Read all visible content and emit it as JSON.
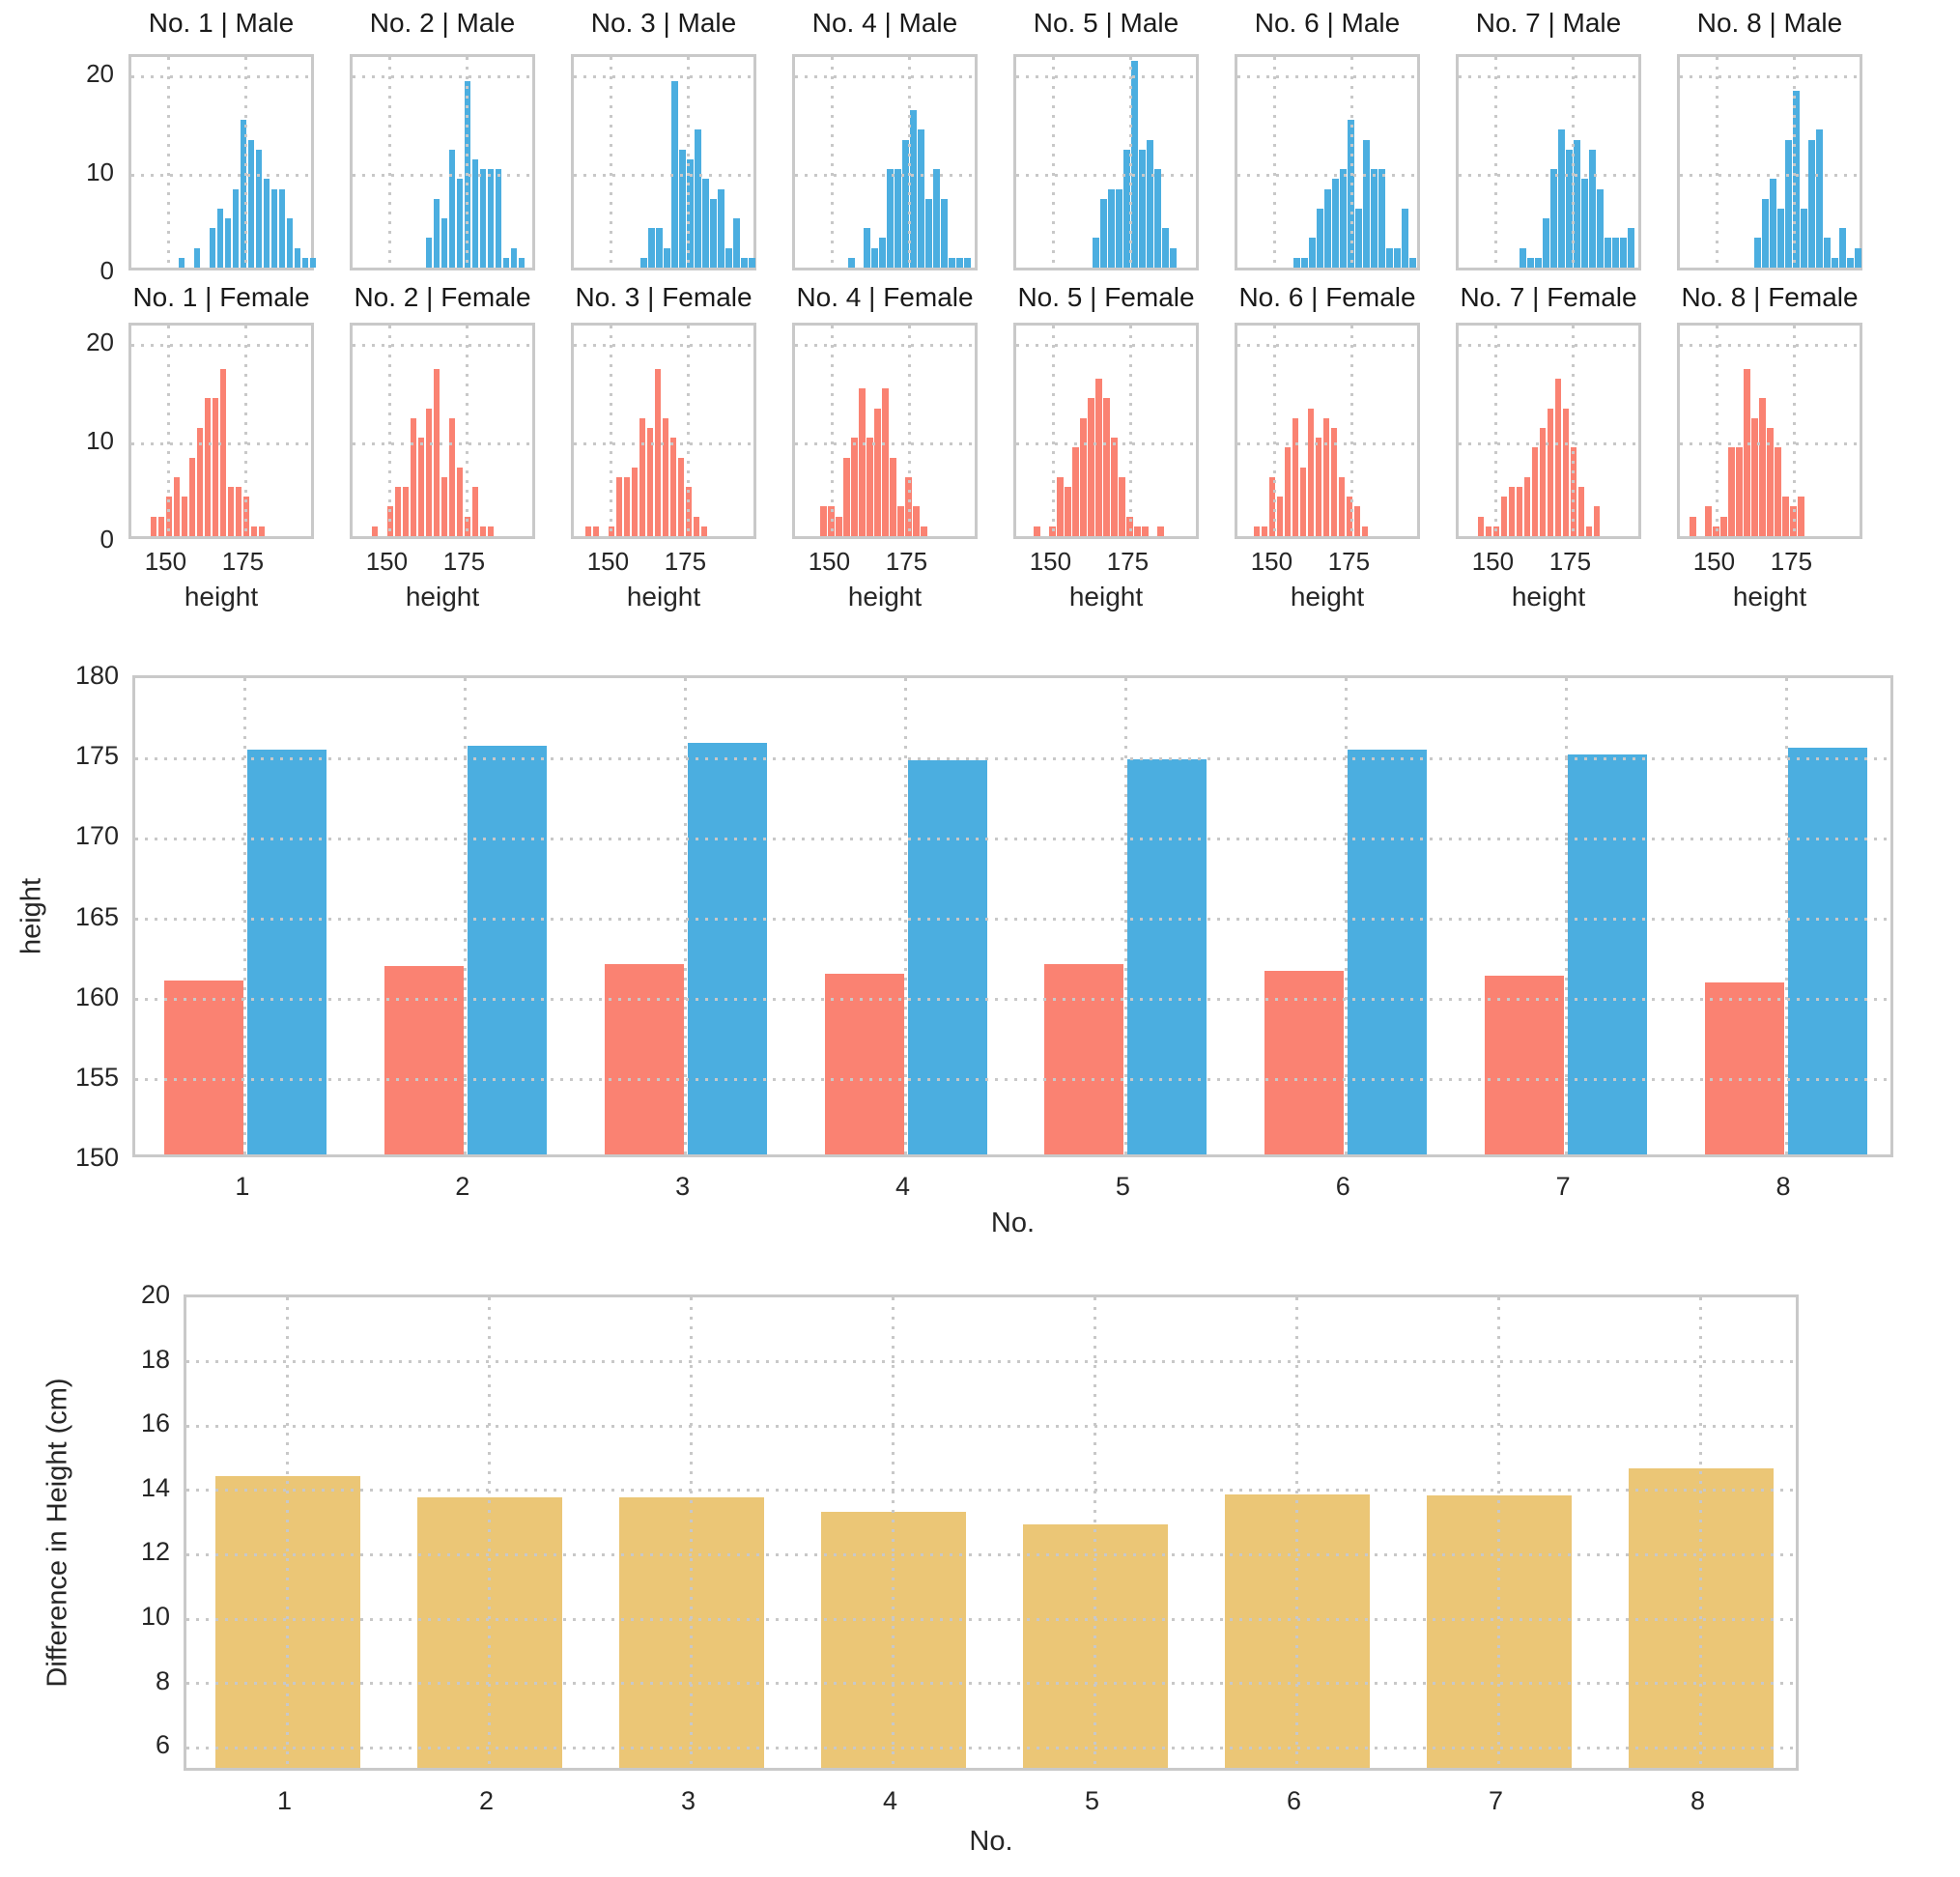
{
  "palette": {
    "male_blue": "#4BAEE0",
    "female_salmon": "#FA8272",
    "diff_gold": "#EBC676",
    "grid_gray": "#C8C8C8",
    "spine_gray": "#C9C9C9",
    "text_dark": "#262626"
  },
  "chart_data": [
    {
      "type": "histogram-grid",
      "xlabel": "height",
      "bin_width": 2.5,
      "xlim": [
        138,
        198
      ],
      "ylim": [
        0,
        22
      ],
      "xticks": [
        "150",
        "175"
      ],
      "yticks": [
        "20",
        "10",
        "0"
      ],
      "rows": [
        {
          "gender": "Male",
          "color": "#4BAEE0",
          "panels": [
            {
              "title": "No. 1 | Male",
              "start": 153.0,
              "counts": [
                1,
                0,
                2,
                0,
                4,
                6,
                5,
                8,
                15,
                13,
                12,
                9,
                8,
                8,
                5,
                2,
                1,
                1
              ]
            },
            {
              "title": "No. 2 | Male",
              "start": 161.5,
              "counts": [
                3,
                7,
                5,
                12,
                9,
                19,
                11,
                10,
                10,
                10,
                1,
                2,
                1
              ]
            },
            {
              "title": "No. 3 | Male",
              "start": 159.5,
              "counts": [
                1,
                4,
                4,
                2,
                19,
                12,
                11,
                14,
                9,
                7,
                8,
                2,
                5,
                1,
                1
              ]
            },
            {
              "title": "No. 4 | Male",
              "start": 155.0,
              "counts": [
                1,
                0,
                4,
                2,
                3,
                10,
                10,
                13,
                16,
                14,
                7,
                10,
                7,
                1,
                1,
                1
              ]
            },
            {
              "title": "No. 5 | Male",
              "start": 162.5,
              "counts": [
                3,
                7,
                8,
                8,
                12,
                21,
                12,
                13,
                10,
                4,
                2
              ]
            },
            {
              "title": "No. 6 | Male",
              "start": 156.0,
              "counts": [
                1,
                1,
                3,
                6,
                8,
                9,
                10,
                15,
                6,
                13,
                10,
                10,
                2,
                2,
                6,
                1
              ]
            },
            {
              "title": "No. 7 | Male",
              "start": 157.5,
              "counts": [
                2,
                1,
                1,
                5,
                10,
                14,
                12,
                13,
                9,
                12,
                8,
                3,
                3,
                3,
                4
              ]
            },
            {
              "title": "No. 8 | Male",
              "start": 162.0,
              "counts": [
                3,
                7,
                9,
                6,
                13,
                18,
                6,
                13,
                14,
                3,
                1,
                4,
                1,
                2
              ]
            }
          ]
        },
        {
          "gender": "Female",
          "color": "#FA8272",
          "panels": [
            {
              "title": "No. 1 | Female",
              "start": 144.0,
              "counts": [
                2,
                2,
                4,
                6,
                4,
                8,
                11,
                14,
                14,
                17,
                5,
                5,
                4,
                1,
                1
              ]
            },
            {
              "title": "No. 2 | Female",
              "start": 144.0,
              "counts": [
                1,
                0,
                3,
                5,
                5,
                12,
                10,
                13,
                17,
                6,
                12,
                7,
                2,
                5,
                1,
                1
              ]
            },
            {
              "title": "No. 3 | Female",
              "start": 141.5,
              "counts": [
                1,
                1,
                0,
                1,
                6,
                6,
                7,
                12,
                11,
                17,
                12,
                10,
                8,
                5,
                2,
                1
              ]
            },
            {
              "title": "No. 4 | Female",
              "start": 146.0,
              "counts": [
                3,
                3,
                2,
                8,
                10,
                15,
                10,
                13,
                15,
                8,
                3,
                6,
                3,
                1
              ]
            },
            {
              "title": "No. 5 | Female",
              "start": 143.5,
              "counts": [
                1,
                0,
                1,
                6,
                5,
                9,
                12,
                14,
                16,
                14,
                10,
                6,
                2,
                1,
                1,
                0,
                1
              ]
            },
            {
              "title": "No. 6 | Female",
              "start": 143.0,
              "counts": [
                1,
                1,
                6,
                4,
                9,
                12,
                7,
                13,
                10,
                12,
                11,
                6,
                4,
                3,
                1
              ]
            },
            {
              "title": "No. 7 | Female",
              "start": 144.0,
              "counts": [
                2,
                1,
                1,
                4,
                5,
                5,
                6,
                9,
                11,
                13,
                16,
                13,
                9,
                5,
                1,
                3
              ]
            },
            {
              "title": "No. 8 | Female",
              "start": 141.0,
              "counts": [
                2,
                0,
                3,
                1,
                2,
                9,
                9,
                17,
                12,
                14,
                11,
                9,
                4,
                3,
                4
              ]
            }
          ]
        }
      ]
    },
    {
      "type": "bar",
      "ylabel": "height",
      "xlabel": "No.",
      "ylim": [
        150,
        180
      ],
      "yticks": [
        "180",
        "175",
        "170",
        "165",
        "160",
        "155",
        "150"
      ],
      "categories": [
        "1",
        "2",
        "3",
        "4",
        "5",
        "6",
        "7",
        "8"
      ],
      "series": [
        {
          "name": "Female",
          "color": "#FA8272",
          "values": [
            161.0,
            161.9,
            162.0,
            161.4,
            162.0,
            161.6,
            161.3,
            160.9
          ]
        },
        {
          "name": "Male",
          "color": "#4BAEE0",
          "values": [
            175.4,
            175.6,
            175.8,
            174.7,
            174.8,
            175.4,
            175.1,
            175.5
          ]
        }
      ]
    },
    {
      "type": "bar",
      "ylabel": "Difference in Height (cm)",
      "xlabel": "No.",
      "ylim": [
        5.2,
        20
      ],
      "yticks": [
        "20",
        "18",
        "16",
        "14",
        "12",
        "10",
        "8",
        "6"
      ],
      "categories": [
        "1",
        "2",
        "3",
        "4",
        "5",
        "6",
        "7",
        "8"
      ],
      "values": [
        14.35,
        13.7,
        13.7,
        13.25,
        12.85,
        13.8,
        13.75,
        14.6
      ]
    }
  ]
}
